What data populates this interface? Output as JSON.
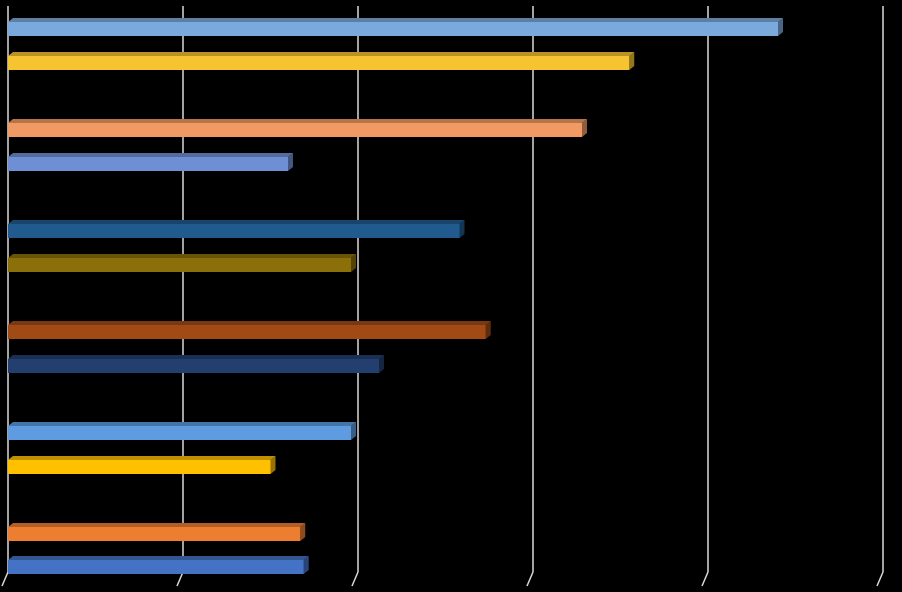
{
  "chart_data": {
    "type": "bar",
    "orientation": "horizontal",
    "style": "3d-flat-bars",
    "title": "",
    "xlabel": "",
    "ylabel": "",
    "background_color": "#000000",
    "gridline_color": "#d9d9d9",
    "grid": true,
    "legend": "none",
    "xlim": [
      0,
      5
    ],
    "gridline_count": 5,
    "groups": 6,
    "bars_per_group": 2,
    "bars": [
      {
        "value": 4.4,
        "color": "#7aa9db"
      },
      {
        "value": 3.55,
        "color": "#f6c431"
      },
      {
        "value": 3.28,
        "color": "#f19a63"
      },
      {
        "value": 1.6,
        "color": "#6e8fd3"
      },
      {
        "value": 2.58,
        "color": "#215a8e"
      },
      {
        "value": 1.96,
        "color": "#8b6f08"
      },
      {
        "value": 2.73,
        "color": "#a24a15"
      },
      {
        "value": 2.12,
        "color": "#233f70"
      },
      {
        "value": 1.96,
        "color": "#5e9be0"
      },
      {
        "value": 1.5,
        "color": "#ffc000"
      },
      {
        "value": 1.67,
        "color": "#ed7d31"
      },
      {
        "value": 1.69,
        "color": "#4472c4"
      }
    ]
  }
}
